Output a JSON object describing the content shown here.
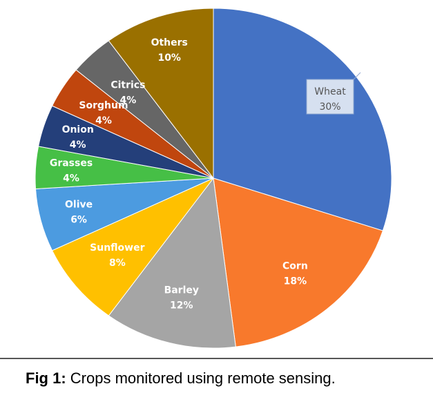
{
  "chart_data": {
    "type": "pie",
    "title": "",
    "categories": [
      "Wheat",
      "Corn",
      "Barley",
      "Sunflower",
      "Olive",
      "Grasses",
      "Onion",
      "Sorghum",
      "Citrics",
      "Others"
    ],
    "values": [
      30,
      18,
      12,
      8,
      6,
      4,
      4,
      4,
      4,
      10
    ],
    "labels": [
      "30%",
      "18%",
      "12%",
      "8%",
      "6%",
      "4%",
      "4%",
      "4%",
      "4%",
      "10%"
    ],
    "colors": [
      "#4472C4",
      "#F8792C",
      "#A5A5A5",
      "#FFC000",
      "#4C9BE0",
      "#46BF46",
      "#243F7A",
      "#C0460E",
      "#666666",
      "#9A7000"
    ],
    "start_angle": "top",
    "direction": "clockwise"
  },
  "caption": {
    "prefix": "Fig 1:",
    "text": " Crops monitored using remote sensing."
  }
}
